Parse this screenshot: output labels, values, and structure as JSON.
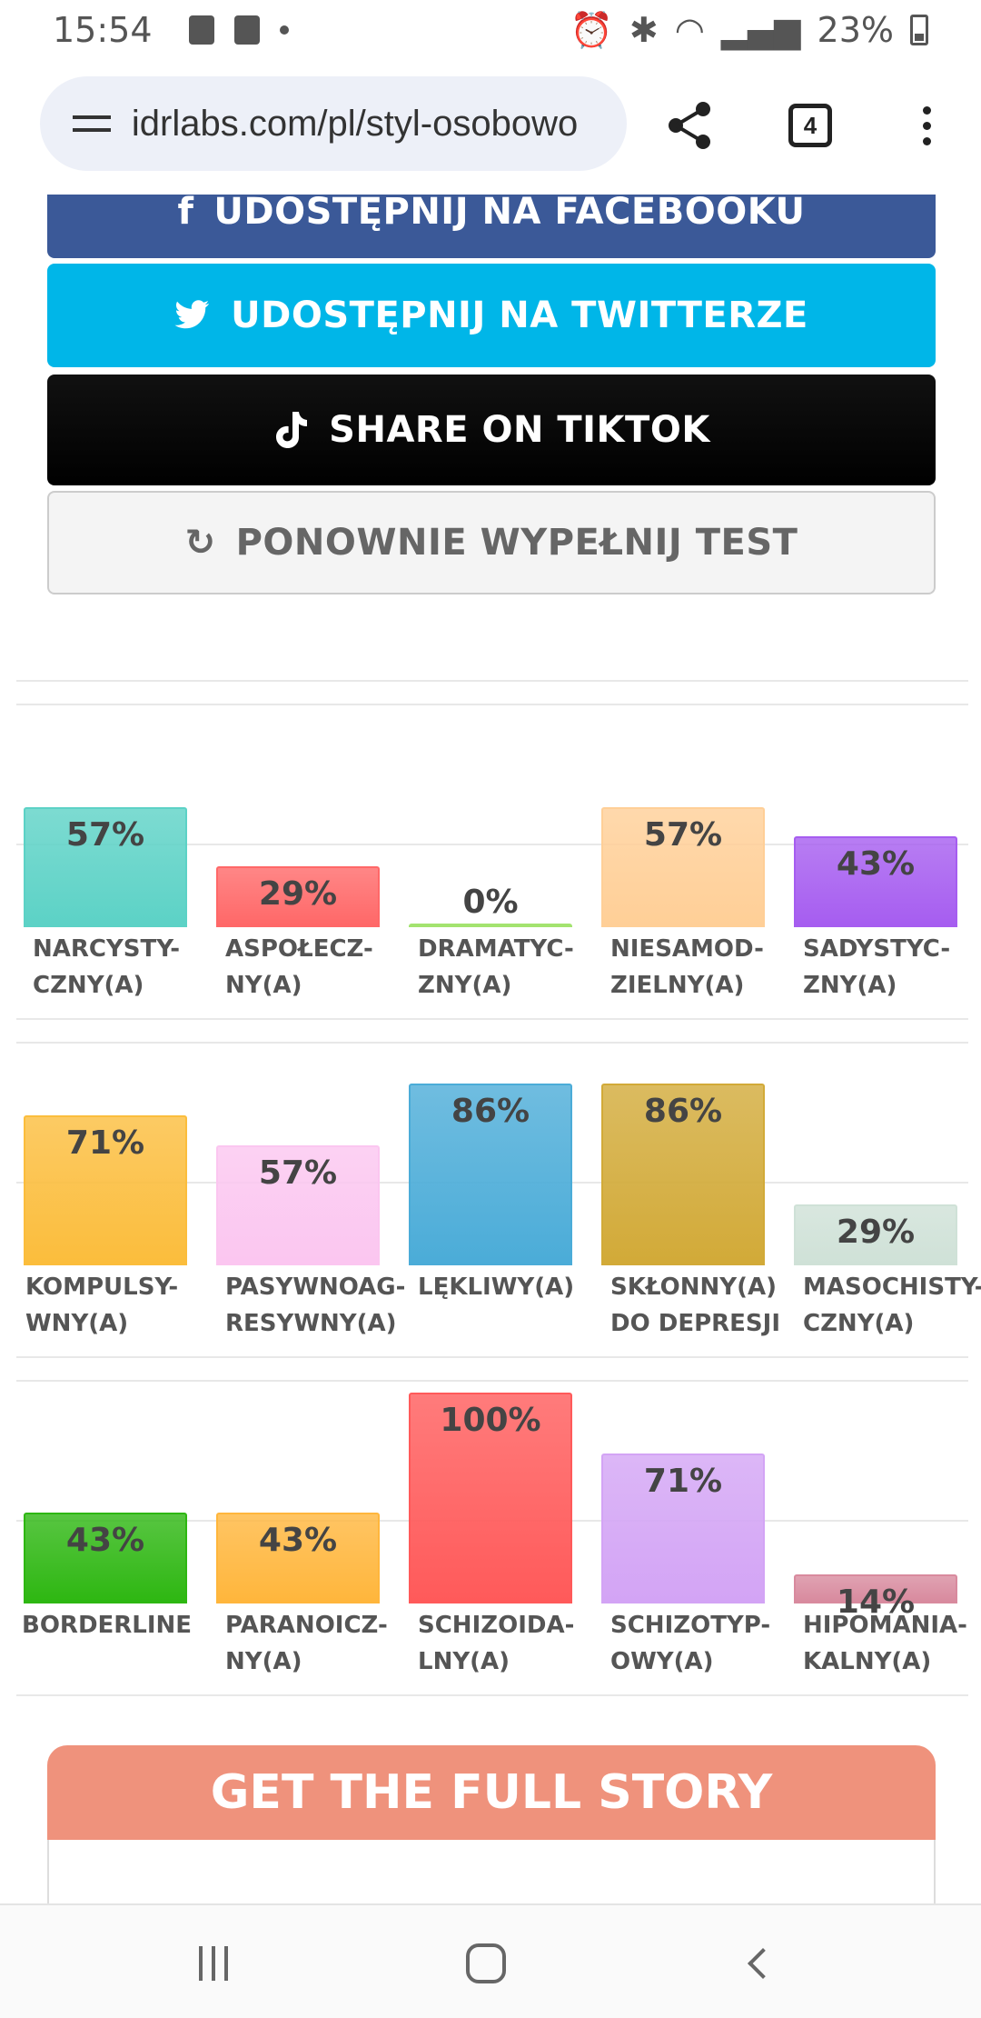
{
  "status_bar": {
    "time": "15:54",
    "battery": "23%"
  },
  "browser": {
    "url": "idrlabs.com/pl/styl-osobowo",
    "tab_count": "4"
  },
  "buttons": {
    "facebook": "UDOSTĘPNIJ NA FACEBOOKU",
    "twitter": "UDOSTĘPNIJ NA TWITTERZE",
    "tiktok": "SHARE ON TIKTOK",
    "retake": "PONOWNIE WYPEŁNIJ TEST"
  },
  "chart_data": [
    {
      "type": "bar",
      "categories": [
        "NARCYSTY-CZNY(A)",
        "ASPOŁECZ-NY(A)",
        "DRAMATYC-ZNY(A)",
        "NIESAMOD-ZIELNY(A)",
        "SADYSTYC-ZNY(A)"
      ],
      "labels": [
        [
          "NARCYSTY-",
          "CZNY(A)"
        ],
        [
          "ASPOŁECZ-",
          "NY(A)"
        ],
        [
          "DRAMATYC-",
          "ZNY(A)"
        ],
        [
          "NIESAMOD-",
          "ZIELNY(A)"
        ],
        [
          "SADYSTYC-",
          "ZNY(A)"
        ]
      ],
      "values": [
        57,
        29,
        0,
        57,
        43
      ],
      "value_labels": [
        "57%",
        "29%",
        "0%",
        "57%",
        "43%"
      ],
      "colors": [
        "#5cd2c6",
        "#ff6868",
        "#a3e36f",
        "#ffcf97",
        "#a65df0"
      ],
      "ylim": [
        0,
        100
      ]
    },
    {
      "type": "bar",
      "categories": [
        "KOMPULSY-WNY(A)",
        "PASYWNOAG-RESYWNY(A)",
        "LĘKLIWY(A)",
        "SKŁONNY(A) DO DEPRESJI",
        "MASOCHISTY-CZNY(A)"
      ],
      "labels": [
        [
          "KOMPULSY-",
          "WNY(A)"
        ],
        [
          "PASYWNOAG-",
          "RESYWNY(A)"
        ],
        [
          "LĘKLIWY(A)"
        ],
        [
          "SKŁONNY(A)",
          "DO DEPRESJI"
        ],
        [
          "MASOCHISTY-",
          "CZNY(A)"
        ]
      ],
      "values": [
        71,
        57,
        86,
        86,
        29
      ],
      "value_labels": [
        "71%",
        "57%",
        "86%",
        "86%",
        "29%"
      ],
      "colors": [
        "#fbbd3c",
        "#fbc6f0",
        "#4bacd8",
        "#d2aa38",
        "#cfe1d7"
      ],
      "ylim": [
        0,
        100
      ]
    },
    {
      "type": "bar",
      "categories": [
        "BORDERLINE",
        "PARANOICZ-NY(A)",
        "SCHIZOIDA-LNY(A)",
        "SCHIZOTYP-OWY(A)",
        "HIPOMANIA-KALNY(A)"
      ],
      "labels": [
        [
          "BORDERLINE"
        ],
        [
          "PARANOICZ-",
          "NY(A)"
        ],
        [
          "SCHIZOIDA-",
          "LNY(A)"
        ],
        [
          "SCHIZOTYP-",
          "OWY(A)"
        ],
        [
          "HIPOMANIA-",
          "KALNY(A)"
        ]
      ],
      "values": [
        43,
        43,
        100,
        71,
        14
      ],
      "value_labels": [
        "43%",
        "43%",
        "100%",
        "71%",
        "14%"
      ],
      "colors": [
        "#2eb712",
        "#ffb63c",
        "#ff5a5a",
        "#d3a4f5",
        "#d88a9e"
      ],
      "ylim": [
        0,
        100
      ]
    }
  ],
  "story": {
    "header": "GET THE FULL STORY"
  }
}
